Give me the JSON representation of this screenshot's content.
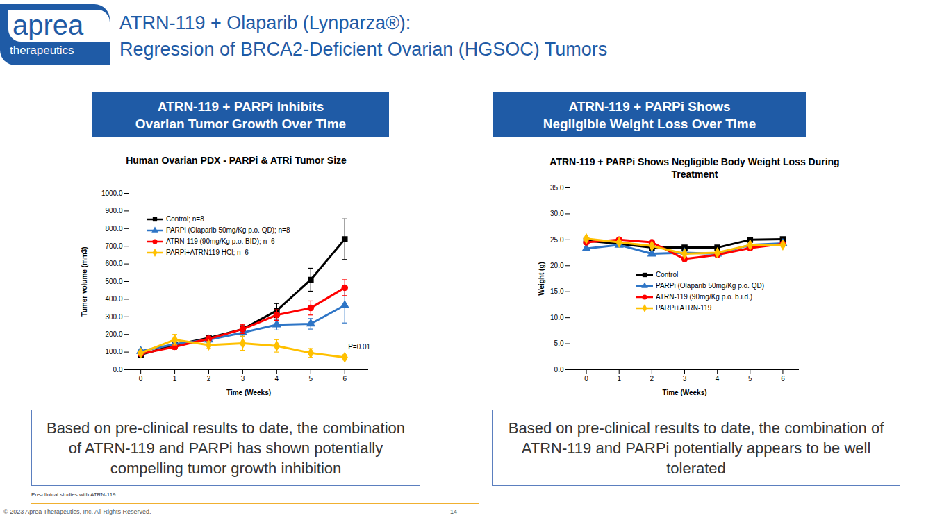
{
  "slide": {
    "logo": [
      "aprea",
      "therapeutics"
    ],
    "title": [
      "ATRN-119 + Olaparib (Lynparza®):",
      "Regression of BRCA2-Deficient Ovarian (HGSOC) Tumors"
    ],
    "panel_titles": [
      [
        "ATRN-119 + PARPi Inhibits",
        "Ovarian Tumor Growth Over Time"
      ],
      [
        "ATRN-119 + PARPi Shows",
        "Negligible Weight Loss Over Time"
      ]
    ],
    "captions": [
      "Based on pre-clinical results to date, the combination of ATRN-119 and PARPi has shown potentially compelling tumor growth inhibition",
      "Based on pre-clinical results to date, the combination of ATRN-119 and PARPi potentially appears to be well tolerated"
    ],
    "footnote": "Pre-clinical studies with ATRN-119",
    "footer": "© 2023 Aprea Therapeutics, Inc. All Rights Reserved.",
    "page_number": 14
  },
  "chart_data": [
    {
      "type": "line",
      "title": "Human Ovarian PDX - PARPi & ATRi Tumor Size",
      "x_label": "Time (Weeks)",
      "y_label": "Tumer volume (mm3)",
      "x": [
        0,
        1,
        2,
        3,
        4,
        5,
        6
      ],
      "xlim": [
        -0.35,
        6.7
      ],
      "xticks": [
        0,
        1,
        2,
        3,
        4,
        5,
        6
      ],
      "ylim": [
        0,
        1000
      ],
      "yticks": [
        {
          "value": 0,
          "label": "0.0"
        },
        {
          "value": 100,
          "label": "100.0"
        },
        {
          "value": 200,
          "label": "200.0"
        },
        {
          "value": 300,
          "label": "300.0"
        },
        {
          "value": 400,
          "label": "400.0"
        },
        {
          "value": 500,
          "label": "500.0"
        },
        {
          "value": 600,
          "label": "600.0"
        },
        {
          "value": 700,
          "label": "700.0"
        },
        {
          "value": 800,
          "label": "800.0"
        },
        {
          "value": 900,
          "label": "900.0"
        },
        {
          "value": 1000,
          "label": "1000.0"
        }
      ],
      "grid": false,
      "legend": "upper left",
      "series": [
        {
          "name": "Control; n=8",
          "color": "#000000",
          "marker": "square",
          "values": [
            85,
            140,
            180,
            230,
            335,
            510,
            740
          ],
          "errors": [
            10,
            15,
            15,
            20,
            40,
            65,
            115
          ]
        },
        {
          "name": "PARPi (Olaparib 50mg/Kg p.o. QD); n=8",
          "color": "#2e75c6",
          "marker": "triangle",
          "values": [
            105,
            145,
            170,
            210,
            255,
            260,
            365
          ],
          "errors": [
            10,
            15,
            15,
            20,
            30,
            30,
            100
          ]
        },
        {
          "name": "ATRN-119 (90mg/Kg p.o. BID); n=6",
          "color": "#ff0000",
          "marker": "circle",
          "values": [
            90,
            130,
            175,
            230,
            310,
            350,
            465
          ],
          "errors": [
            10,
            15,
            15,
            25,
            30,
            40,
            45
          ]
        },
        {
          "name": "PARPi+ATRN119 HCl; n=6",
          "color": "#ffc000",
          "marker": "diamond",
          "values": [
            95,
            170,
            140,
            150,
            135,
            95,
            70
          ],
          "errors": [
            10,
            30,
            20,
            40,
            35,
            25,
            15
          ]
        }
      ],
      "annotations": [
        {
          "text": "P=0.01",
          "x": 6.1,
          "y": 130
        }
      ]
    },
    {
      "type": "line",
      "title": "ATRN-119 + PARPi Shows Negligible Body Weight Loss During Treatment",
      "x_label": "Time (Weeks)",
      "y_label": "Weight (g)",
      "x": [
        0,
        1,
        2,
        3,
        4,
        5,
        6
      ],
      "xlim": [
        -0.5,
        6.5
      ],
      "xticks": [
        0,
        1,
        2,
        3,
        4,
        5,
        6
      ],
      "ylim": [
        0,
        35
      ],
      "yticks": [
        {
          "value": 0,
          "label": "0.0"
        },
        {
          "value": 5,
          "label": "5.0"
        },
        {
          "value": 10,
          "label": "10.0"
        },
        {
          "value": 15,
          "label": "15.0"
        },
        {
          "value": 20,
          "label": "20.0"
        },
        {
          "value": 25,
          "label": "25.0"
        },
        {
          "value": 30,
          "label": "30.0"
        },
        {
          "value": 35,
          "label": "35.0"
        }
      ],
      "grid": false,
      "legend": "center",
      "series": [
        {
          "name": "Control",
          "color": "#000000",
          "marker": "square",
          "values": [
            24.8,
            24.2,
            23.5,
            23.5,
            23.5,
            25.0,
            25.1
          ]
        },
        {
          "name": "PARPi (Olaparib 50mg/Kg p.o. QD)",
          "color": "#2e75c6",
          "marker": "triangle",
          "values": [
            23.3,
            24.0,
            22.3,
            22.5,
            22.3,
            24.0,
            24.3
          ]
        },
        {
          "name": "ATRN-119 (90mg/Kg p.o. b.i.d.)",
          "color": "#ff0000",
          "marker": "circle",
          "values": [
            24.5,
            25.0,
            24.5,
            21.3,
            22.1,
            23.4,
            24.2
          ]
        },
        {
          "name": "PARPi+ATRN-119",
          "color": "#ffc000",
          "marker": "diamond",
          "values": [
            25.2,
            24.5,
            23.8,
            22.3,
            22.5,
            24.0,
            24.0
          ]
        }
      ]
    }
  ]
}
